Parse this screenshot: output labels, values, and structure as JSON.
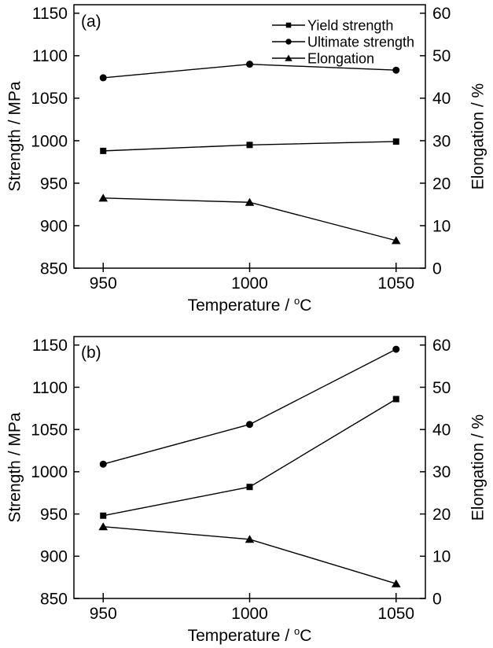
{
  "colors": {
    "background": "#ffffff",
    "foreground": "#000000"
  },
  "chart_data": [
    {
      "type": "line",
      "panel_label": "(a)",
      "x": [
        950,
        1000,
        1050
      ],
      "xticks": [
        950,
        1000,
        1050
      ],
      "xlabel": "Temperature / °C",
      "ylabel_left": "Strength / MPa",
      "ylabel_right": "Elongation / %",
      "ylim_left": [
        850,
        1150
      ],
      "yticks_left": [
        850,
        900,
        950,
        1000,
        1050,
        1100,
        1150
      ],
      "ylim_right": [
        0,
        60
      ],
      "yticks_right": [
        0,
        10,
        20,
        30,
        40,
        50,
        60
      ],
      "grid": false,
      "legend": {
        "visible": true,
        "position": "top-right"
      },
      "series": [
        {
          "name": "Yield strength",
          "marker": "square",
          "axis": "left",
          "values": [
            988,
            995,
            999
          ]
        },
        {
          "name": "Ultimate strength",
          "marker": "circle",
          "axis": "left",
          "values": [
            1074,
            1090,
            1083
          ]
        },
        {
          "name": "Elongation",
          "marker": "triangle",
          "axis": "right",
          "values": [
            16.5,
            15.5,
            6.5
          ]
        }
      ]
    },
    {
      "type": "line",
      "panel_label": "(b)",
      "x": [
        950,
        1000,
        1050
      ],
      "xticks": [
        950,
        1000,
        1050
      ],
      "xlabel": "Temperature / °C",
      "ylabel_left": "Strength / MPa",
      "ylabel_right": "Elongation / %",
      "ylim_left": [
        850,
        1150
      ],
      "yticks_left": [
        850,
        900,
        950,
        1000,
        1050,
        1100,
        1150
      ],
      "ylim_right": [
        0,
        60
      ],
      "yticks_right": [
        0,
        10,
        20,
        30,
        40,
        50,
        60
      ],
      "grid": false,
      "legend": {
        "visible": false,
        "position": "none"
      },
      "series": [
        {
          "name": "Yield strength",
          "marker": "square",
          "axis": "left",
          "values": [
            948,
            982,
            1086
          ]
        },
        {
          "name": "Ultimate strength",
          "marker": "circle",
          "axis": "left",
          "values": [
            1009,
            1056,
            1145
          ]
        },
        {
          "name": "Elongation",
          "marker": "triangle",
          "axis": "right",
          "values": [
            17,
            14,
            3.5
          ]
        }
      ]
    }
  ]
}
